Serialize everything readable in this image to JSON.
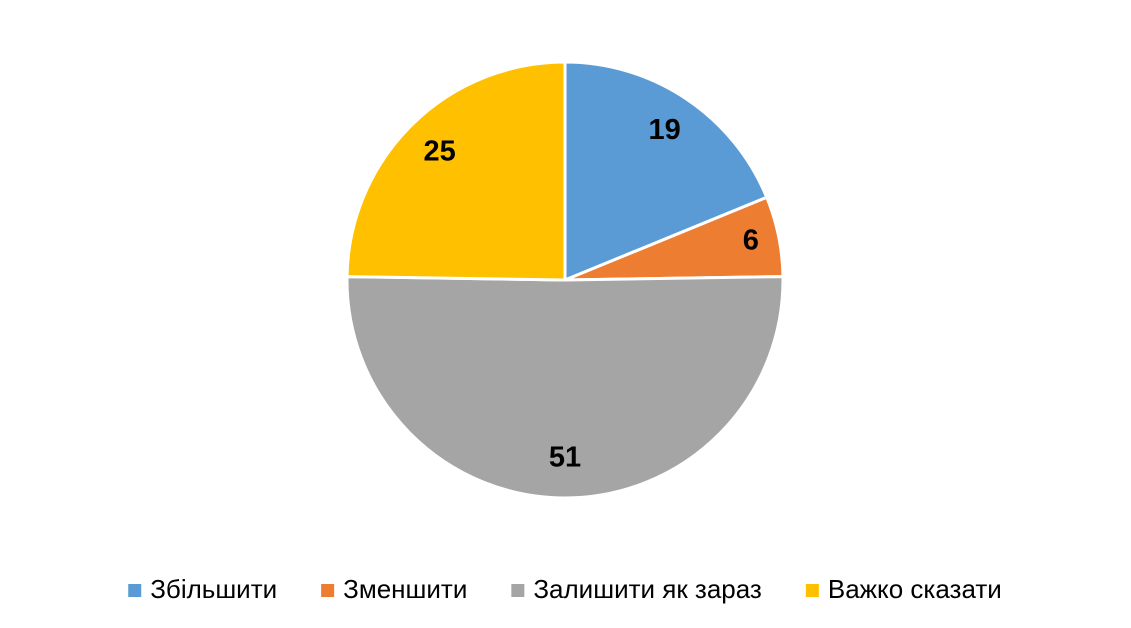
{
  "chart_data": {
    "type": "pie",
    "categories": [
      "Збільшити",
      "Зменшити",
      "Залишити як зараз",
      "Важко сказати"
    ],
    "values": [
      19,
      6,
      51,
      25
    ],
    "colors": [
      "#5b9bd5",
      "#ed7d31",
      "#a5a5a5",
      "#ffc000"
    ],
    "legend": "bottom"
  }
}
